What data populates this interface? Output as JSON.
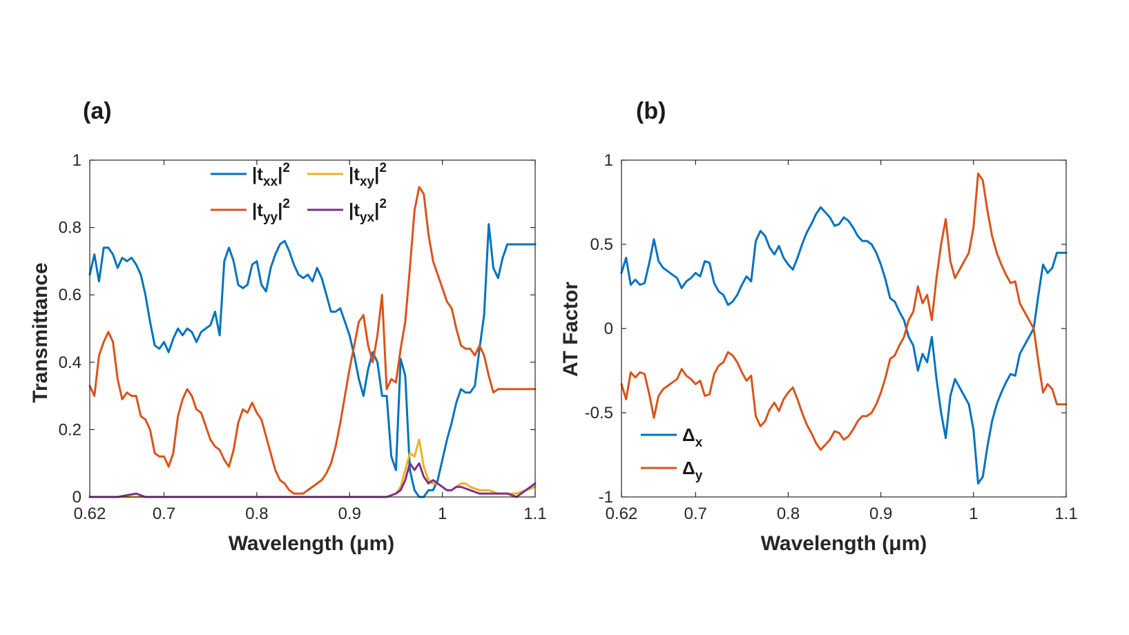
{
  "chart_data": [
    {
      "type": "line",
      "panel_label": "(a)",
      "xlabel": "Wavelength (μm)",
      "ylabel": "Transmittance",
      "xlim": [
        0.62,
        1.1
      ],
      "ylim": [
        0,
        1
      ],
      "xticks": [
        0.62,
        0.7,
        0.8,
        0.9,
        1.0,
        1.1
      ],
      "xtick_labels": [
        "0.62",
        "0.7",
        "0.8",
        "0.9",
        "1",
        "1.1"
      ],
      "yticks": [
        0,
        0.2,
        0.4,
        0.6,
        0.8,
        1
      ],
      "ytick_labels": [
        "0",
        "0.2",
        "0.4",
        "0.6",
        "0.8",
        "1"
      ],
      "legend_position": "top-center",
      "series": [
        {
          "name": "|txx|²",
          "legend": {
            "base": "|t",
            "sub": "xx",
            "post": "|",
            "sup": "2"
          },
          "color": "#0072BD",
          "x": [
            0.62,
            0.625,
            0.63,
            0.635,
            0.64,
            0.645,
            0.65,
            0.655,
            0.66,
            0.665,
            0.67,
            0.675,
            0.68,
            0.685,
            0.69,
            0.695,
            0.7,
            0.705,
            0.71,
            0.715,
            0.72,
            0.725,
            0.73,
            0.735,
            0.74,
            0.745,
            0.75,
            0.755,
            0.76,
            0.765,
            0.77,
            0.775,
            0.78,
            0.785,
            0.79,
            0.795,
            0.8,
            0.805,
            0.81,
            0.815,
            0.82,
            0.825,
            0.83,
            0.835,
            0.84,
            0.845,
            0.85,
            0.855,
            0.86,
            0.865,
            0.87,
            0.875,
            0.88,
            0.885,
            0.89,
            0.895,
            0.9,
            0.905,
            0.91,
            0.915,
            0.92,
            0.925,
            0.93,
            0.935,
            0.94,
            0.945,
            0.95,
            0.955,
            0.96,
            0.965,
            0.97,
            0.975,
            0.98,
            0.985,
            0.99,
            0.995,
            1.0,
            1.005,
            1.01,
            1.015,
            1.02,
            1.025,
            1.03,
            1.035,
            1.04,
            1.045,
            1.05,
            1.055,
            1.06,
            1.065,
            1.07,
            1.075,
            1.08,
            1.085,
            1.09,
            1.095,
            1.1
          ],
          "values": [
            0.66,
            0.72,
            0.64,
            0.74,
            0.74,
            0.72,
            0.68,
            0.71,
            0.7,
            0.71,
            0.69,
            0.66,
            0.6,
            0.52,
            0.45,
            0.44,
            0.46,
            0.43,
            0.47,
            0.5,
            0.48,
            0.5,
            0.49,
            0.46,
            0.49,
            0.5,
            0.51,
            0.55,
            0.48,
            0.7,
            0.74,
            0.7,
            0.63,
            0.62,
            0.63,
            0.69,
            0.7,
            0.63,
            0.61,
            0.68,
            0.72,
            0.75,
            0.76,
            0.73,
            0.69,
            0.66,
            0.65,
            0.66,
            0.64,
            0.68,
            0.65,
            0.6,
            0.55,
            0.55,
            0.56,
            0.52,
            0.48,
            0.42,
            0.35,
            0.3,
            0.38,
            0.43,
            0.4,
            0.3,
            0.3,
            0.12,
            0.08,
            0.41,
            0.36,
            0.08,
            0.02,
            0.0,
            0.0,
            0.02,
            0.02,
            0.05,
            0.11,
            0.17,
            0.22,
            0.28,
            0.32,
            0.31,
            0.31,
            0.33,
            0.44,
            0.54,
            0.81,
            0.68,
            0.65,
            0.71,
            0.75,
            0.75,
            0.75,
            0.75,
            0.75,
            0.75,
            0.75
          ]
        },
        {
          "name": "|tyy|²",
          "legend": {
            "base": "|t",
            "sub": "yy",
            "post": "|",
            "sup": "2"
          },
          "color": "#D95319",
          "x": [
            0.62,
            0.625,
            0.63,
            0.635,
            0.64,
            0.645,
            0.65,
            0.655,
            0.66,
            0.665,
            0.67,
            0.675,
            0.68,
            0.685,
            0.69,
            0.695,
            0.7,
            0.705,
            0.71,
            0.715,
            0.72,
            0.725,
            0.73,
            0.735,
            0.74,
            0.745,
            0.75,
            0.755,
            0.76,
            0.765,
            0.77,
            0.775,
            0.78,
            0.785,
            0.79,
            0.795,
            0.8,
            0.805,
            0.81,
            0.815,
            0.82,
            0.825,
            0.83,
            0.835,
            0.84,
            0.845,
            0.85,
            0.855,
            0.86,
            0.865,
            0.87,
            0.875,
            0.88,
            0.885,
            0.89,
            0.895,
            0.9,
            0.905,
            0.91,
            0.915,
            0.92,
            0.925,
            0.93,
            0.935,
            0.94,
            0.945,
            0.95,
            0.955,
            0.96,
            0.965,
            0.97,
            0.975,
            0.98,
            0.985,
            0.99,
            0.995,
            1.0,
            1.005,
            1.01,
            1.015,
            1.02,
            1.025,
            1.03,
            1.035,
            1.04,
            1.045,
            1.05,
            1.055,
            1.06,
            1.065,
            1.07,
            1.075,
            1.08,
            1.085,
            1.09,
            1.095,
            1.1
          ],
          "values": [
            0.33,
            0.3,
            0.42,
            0.46,
            0.49,
            0.46,
            0.35,
            0.29,
            0.31,
            0.3,
            0.3,
            0.24,
            0.23,
            0.2,
            0.13,
            0.12,
            0.12,
            0.09,
            0.13,
            0.24,
            0.29,
            0.32,
            0.3,
            0.26,
            0.25,
            0.21,
            0.17,
            0.15,
            0.14,
            0.11,
            0.09,
            0.14,
            0.22,
            0.26,
            0.25,
            0.28,
            0.25,
            0.23,
            0.18,
            0.13,
            0.08,
            0.05,
            0.04,
            0.02,
            0.01,
            0.01,
            0.01,
            0.02,
            0.03,
            0.04,
            0.05,
            0.07,
            0.1,
            0.15,
            0.22,
            0.3,
            0.38,
            0.45,
            0.52,
            0.54,
            0.45,
            0.4,
            0.48,
            0.6,
            0.32,
            0.35,
            0.34,
            0.44,
            0.52,
            0.68,
            0.85,
            0.92,
            0.9,
            0.78,
            0.7,
            0.66,
            0.62,
            0.58,
            0.56,
            0.5,
            0.45,
            0.44,
            0.44,
            0.42,
            0.45,
            0.42,
            0.36,
            0.31,
            0.32,
            0.32,
            0.32,
            0.32,
            0.32,
            0.32,
            0.32,
            0.32,
            0.32
          ]
        },
        {
          "name": "|txy|²",
          "legend": {
            "base": "|t",
            "sub": "xy",
            "post": "|",
            "sup": "2"
          },
          "color": "#EDB120",
          "x": [
            0.62,
            0.65,
            0.7,
            0.75,
            0.8,
            0.85,
            0.9,
            0.93,
            0.94,
            0.95,
            0.955,
            0.96,
            0.965,
            0.97,
            0.975,
            0.98,
            0.985,
            0.99,
            0.995,
            1.0,
            1.005,
            1.01,
            1.015,
            1.02,
            1.025,
            1.03,
            1.04,
            1.05,
            1.06,
            1.07,
            1.08,
            1.09,
            1.1
          ],
          "values": [
            0.0,
            0.0,
            0.0,
            0.0,
            0.0,
            0.0,
            0.0,
            0.0,
            0.0,
            0.01,
            0.03,
            0.08,
            0.13,
            0.12,
            0.17,
            0.09,
            0.05,
            0.04,
            0.04,
            0.03,
            0.02,
            0.02,
            0.03,
            0.04,
            0.04,
            0.03,
            0.02,
            0.02,
            0.01,
            0.01,
            0.01,
            0.02,
            0.03
          ]
        },
        {
          "name": "|tyx|²",
          "legend": {
            "base": "|t",
            "sub": "yx",
            "post": "|",
            "sup": "2"
          },
          "color": "#7E2F8E",
          "x": [
            0.62,
            0.65,
            0.67,
            0.68,
            0.7,
            0.75,
            0.8,
            0.85,
            0.9,
            0.93,
            0.94,
            0.95,
            0.955,
            0.96,
            0.965,
            0.97,
            0.975,
            0.98,
            0.985,
            0.99,
            0.995,
            1.0,
            1.005,
            1.01,
            1.015,
            1.02,
            1.03,
            1.04,
            1.05,
            1.06,
            1.07,
            1.08,
            1.09,
            1.1
          ],
          "values": [
            0.0,
            0.0,
            0.01,
            0.0,
            0.0,
            0.0,
            0.0,
            0.0,
            0.0,
            0.0,
            0.0,
            0.01,
            0.02,
            0.05,
            0.1,
            0.08,
            0.1,
            0.06,
            0.04,
            0.05,
            0.04,
            0.03,
            0.02,
            0.02,
            0.03,
            0.03,
            0.02,
            0.01,
            0.01,
            0.01,
            0.01,
            0.0,
            0.02,
            0.04
          ]
        }
      ]
    },
    {
      "type": "line",
      "panel_label": "(b)",
      "xlabel": "Wavelength (μm)",
      "ylabel": "AT Factor",
      "xlim": [
        0.62,
        1.1
      ],
      "ylim": [
        -1,
        1
      ],
      "xticks": [
        0.62,
        0.7,
        0.8,
        0.9,
        1.0,
        1.1
      ],
      "xtick_labels": [
        "0.62",
        "0.7",
        "0.8",
        "0.9",
        "1",
        "1.1"
      ],
      "yticks": [
        -1,
        -0.5,
        0,
        0.5,
        1
      ],
      "ytick_labels": [
        "-1",
        "-0.5",
        "0",
        "0.5",
        "1"
      ],
      "legend_position": "bottom-left",
      "series": [
        {
          "name": "Δx",
          "legend": {
            "base": "Δ",
            "sub": "x"
          },
          "color": "#0072BD",
          "x": [
            0.62,
            0.625,
            0.63,
            0.635,
            0.64,
            0.645,
            0.65,
            0.655,
            0.66,
            0.665,
            0.67,
            0.675,
            0.68,
            0.685,
            0.69,
            0.695,
            0.7,
            0.705,
            0.71,
            0.715,
            0.72,
            0.725,
            0.73,
            0.735,
            0.74,
            0.745,
            0.75,
            0.755,
            0.76,
            0.765,
            0.77,
            0.775,
            0.78,
            0.785,
            0.79,
            0.795,
            0.8,
            0.805,
            0.81,
            0.815,
            0.82,
            0.825,
            0.83,
            0.835,
            0.84,
            0.845,
            0.85,
            0.855,
            0.86,
            0.865,
            0.87,
            0.875,
            0.88,
            0.885,
            0.89,
            0.895,
            0.9,
            0.905,
            0.91,
            0.915,
            0.92,
            0.925,
            0.93,
            0.935,
            0.94,
            0.945,
            0.95,
            0.955,
            0.96,
            0.965,
            0.97,
            0.975,
            0.98,
            0.985,
            0.99,
            0.995,
            1.0,
            1.005,
            1.01,
            1.015,
            1.02,
            1.025,
            1.03,
            1.035,
            1.04,
            1.045,
            1.05,
            1.055,
            1.06,
            1.065,
            1.07,
            1.075,
            1.08,
            1.085,
            1.09,
            1.095,
            1.1
          ],
          "values": [
            0.33,
            0.42,
            0.26,
            0.29,
            0.26,
            0.27,
            0.39,
            0.53,
            0.4,
            0.36,
            0.34,
            0.32,
            0.3,
            0.24,
            0.28,
            0.3,
            0.33,
            0.31,
            0.4,
            0.39,
            0.27,
            0.22,
            0.2,
            0.14,
            0.16,
            0.2,
            0.26,
            0.31,
            0.28,
            0.52,
            0.58,
            0.55,
            0.48,
            0.44,
            0.49,
            0.42,
            0.38,
            0.35,
            0.42,
            0.5,
            0.57,
            0.62,
            0.68,
            0.72,
            0.69,
            0.66,
            0.61,
            0.62,
            0.66,
            0.64,
            0.6,
            0.55,
            0.52,
            0.52,
            0.5,
            0.45,
            0.38,
            0.29,
            0.18,
            0.16,
            0.1,
            0.05,
            -0.05,
            -0.1,
            -0.25,
            -0.15,
            -0.2,
            -0.05,
            -0.3,
            -0.5,
            -0.65,
            -0.4,
            -0.3,
            -0.35,
            -0.4,
            -0.45,
            -0.6,
            -0.92,
            -0.88,
            -0.7,
            -0.55,
            -0.45,
            -0.38,
            -0.32,
            -0.27,
            -0.28,
            -0.15,
            -0.1,
            -0.05,
            0.0,
            0.2,
            0.38,
            0.33,
            0.36,
            0.45,
            0.45,
            0.45
          ]
        },
        {
          "name": "Δy",
          "legend": {
            "base": "Δ",
            "sub": "y"
          },
          "color": "#D95319",
          "x": [
            0.62,
            0.625,
            0.63,
            0.635,
            0.64,
            0.645,
            0.65,
            0.655,
            0.66,
            0.665,
            0.67,
            0.675,
            0.68,
            0.685,
            0.69,
            0.695,
            0.7,
            0.705,
            0.71,
            0.715,
            0.72,
            0.725,
            0.73,
            0.735,
            0.74,
            0.745,
            0.75,
            0.755,
            0.76,
            0.765,
            0.77,
            0.775,
            0.78,
            0.785,
            0.79,
            0.795,
            0.8,
            0.805,
            0.81,
            0.815,
            0.82,
            0.825,
            0.83,
            0.835,
            0.84,
            0.845,
            0.85,
            0.855,
            0.86,
            0.865,
            0.87,
            0.875,
            0.88,
            0.885,
            0.89,
            0.895,
            0.9,
            0.905,
            0.91,
            0.915,
            0.92,
            0.925,
            0.93,
            0.935,
            0.94,
            0.945,
            0.95,
            0.955,
            0.96,
            0.965,
            0.97,
            0.975,
            0.98,
            0.985,
            0.99,
            0.995,
            1.0,
            1.005,
            1.01,
            1.015,
            1.02,
            1.025,
            1.03,
            1.035,
            1.04,
            1.045,
            1.05,
            1.055,
            1.06,
            1.065,
            1.07,
            1.075,
            1.08,
            1.085,
            1.09,
            1.095,
            1.1
          ],
          "values": [
            -0.33,
            -0.42,
            -0.26,
            -0.29,
            -0.26,
            -0.27,
            -0.39,
            -0.53,
            -0.4,
            -0.36,
            -0.34,
            -0.32,
            -0.3,
            -0.24,
            -0.28,
            -0.3,
            -0.33,
            -0.31,
            -0.4,
            -0.39,
            -0.27,
            -0.22,
            -0.2,
            -0.14,
            -0.16,
            -0.2,
            -0.26,
            -0.31,
            -0.28,
            -0.52,
            -0.58,
            -0.55,
            -0.48,
            -0.44,
            -0.49,
            -0.42,
            -0.38,
            -0.35,
            -0.42,
            -0.5,
            -0.57,
            -0.62,
            -0.68,
            -0.72,
            -0.69,
            -0.66,
            -0.61,
            -0.62,
            -0.66,
            -0.64,
            -0.6,
            -0.55,
            -0.52,
            -0.52,
            -0.5,
            -0.45,
            -0.38,
            -0.29,
            -0.18,
            -0.16,
            -0.1,
            -0.05,
            0.05,
            0.1,
            0.25,
            0.15,
            0.2,
            0.05,
            0.3,
            0.5,
            0.65,
            0.4,
            0.3,
            0.35,
            0.4,
            0.45,
            0.6,
            0.92,
            0.88,
            0.7,
            0.55,
            0.45,
            0.38,
            0.32,
            0.27,
            0.28,
            0.15,
            0.1,
            0.05,
            0.0,
            -0.2,
            -0.38,
            -0.33,
            -0.36,
            -0.45,
            -0.45,
            -0.45
          ]
        }
      ]
    }
  ]
}
